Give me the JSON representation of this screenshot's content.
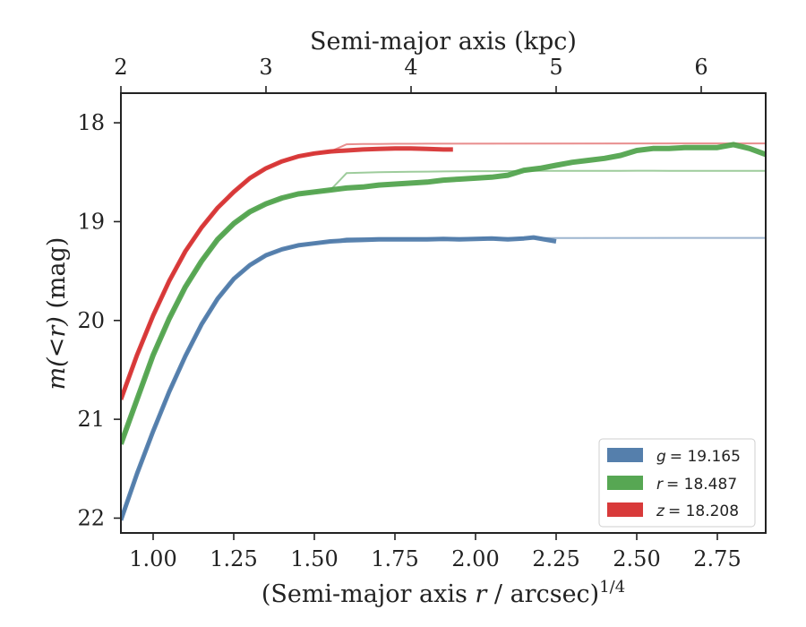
{
  "chart_data": {
    "type": "line",
    "xlabel": "(Semi-major axis r / arcsec)^1/4",
    "xlabel_parts": {
      "prefix": "(Semi-major axis ",
      "var": "r",
      "suffix": " / arcsec)",
      "sup": "1/4"
    },
    "ylabel": "m(<r) (mag)",
    "ylabel_parts": {
      "math": "m(<r)",
      "unit": " (mag)"
    },
    "top_xlabel": "Semi-major axis (kpc)",
    "xlim": [
      0.9,
      2.9
    ],
    "ylim": [
      22.15,
      17.7
    ],
    "y_inverted": true,
    "xticks": [
      1.0,
      1.25,
      1.5,
      1.75,
      2.0,
      2.25,
      2.5,
      2.75
    ],
    "xtick_labels": [
      "1.00",
      "1.25",
      "1.50",
      "1.75",
      "2.00",
      "2.25",
      "2.50",
      "2.75"
    ],
    "yticks": [
      18,
      19,
      20,
      21,
      22
    ],
    "ytick_labels": [
      "18",
      "19",
      "20",
      "21",
      "22"
    ],
    "top_xticks_kpc": [
      2,
      3,
      4,
      5,
      6
    ],
    "top_xtick_labels": [
      "2",
      "3",
      "4",
      "5",
      "6"
    ],
    "top_xtick_positions_data_x": [
      0.9,
      1.35,
      1.8,
      2.25,
      2.7
    ],
    "grid": false,
    "legend_placement": "lower-right",
    "series": [
      {
        "name": "g = 19.165",
        "legend_var": "g",
        "legend_value": "= 19.165",
        "color": "#4c78a8",
        "asymptote": 19.165,
        "x": [
          0.9,
          0.95,
          1.0,
          1.05,
          1.1,
          1.15,
          1.2,
          1.25,
          1.3,
          1.35,
          1.4,
          1.45,
          1.5,
          1.55,
          1.6,
          1.65,
          1.7,
          1.75,
          1.8,
          1.85,
          1.9,
          1.95,
          2.0,
          2.05,
          2.1,
          2.15,
          2.18,
          2.25
        ],
        "y": [
          22.02,
          21.55,
          21.12,
          20.72,
          20.36,
          20.04,
          19.78,
          19.58,
          19.44,
          19.34,
          19.28,
          19.24,
          19.22,
          19.2,
          19.19,
          19.185,
          19.18,
          19.18,
          19.18,
          19.18,
          19.175,
          19.18,
          19.175,
          19.17,
          19.18,
          19.17,
          19.16,
          19.2
        ]
      },
      {
        "name": "r = 18.487",
        "legend_var": "r",
        "legend_value": "= 18.487",
        "color": "#4ea24a",
        "asymptote": 18.487,
        "x": [
          0.9,
          0.95,
          1.0,
          1.05,
          1.1,
          1.15,
          1.2,
          1.25,
          1.3,
          1.35,
          1.4,
          1.45,
          1.5,
          1.55,
          1.6,
          1.65,
          1.7,
          1.75,
          1.8,
          1.85,
          1.9,
          1.95,
          2.0,
          2.05,
          2.1,
          2.15,
          2.2,
          2.25,
          2.3,
          2.35,
          2.4,
          2.45,
          2.5,
          2.55,
          2.6,
          2.65,
          2.7,
          2.75,
          2.8,
          2.85,
          2.9
        ],
        "y": [
          21.25,
          20.8,
          20.35,
          19.98,
          19.66,
          19.4,
          19.18,
          19.02,
          18.9,
          18.82,
          18.76,
          18.72,
          18.7,
          18.68,
          18.66,
          18.65,
          18.63,
          18.62,
          18.61,
          18.6,
          18.58,
          18.57,
          18.56,
          18.55,
          18.53,
          18.48,
          18.46,
          18.43,
          18.4,
          18.38,
          18.36,
          18.33,
          18.28,
          18.26,
          18.26,
          18.25,
          18.25,
          18.25,
          18.22,
          18.26,
          18.32
        ]
      },
      {
        "name": "z = 18.208",
        "legend_var": "z",
        "legend_value": "= 18.208",
        "color": "#d62f2f",
        "asymptote": 18.208,
        "x": [
          0.9,
          0.95,
          1.0,
          1.05,
          1.1,
          1.15,
          1.2,
          1.25,
          1.3,
          1.35,
          1.4,
          1.45,
          1.5,
          1.55,
          1.6,
          1.65,
          1.7,
          1.75,
          1.8,
          1.85,
          1.9,
          1.93
        ],
        "y": [
          20.8,
          20.35,
          19.95,
          19.6,
          19.3,
          19.06,
          18.86,
          18.7,
          18.56,
          18.46,
          18.39,
          18.34,
          18.31,
          18.29,
          18.28,
          18.27,
          18.265,
          18.26,
          18.26,
          18.265,
          18.27,
          18.27
        ]
      }
    ]
  }
}
